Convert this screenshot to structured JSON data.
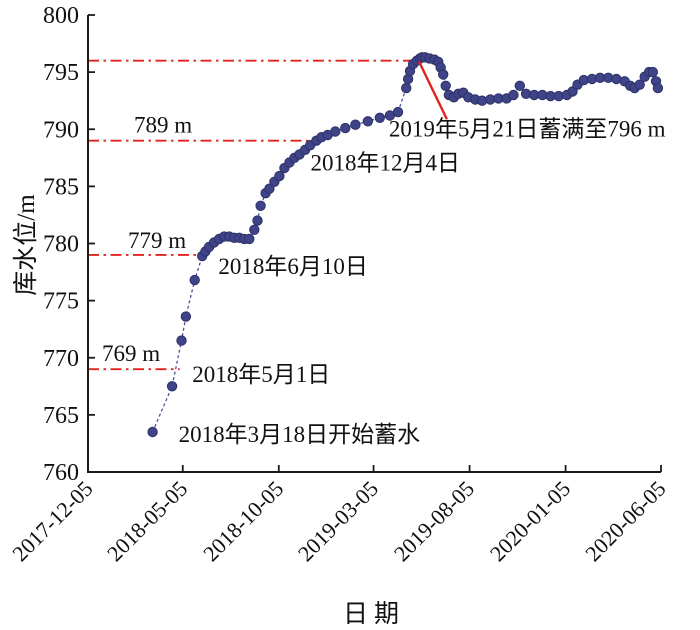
{
  "chart_data": {
    "type": "line",
    "title": "",
    "xlabel": "日期",
    "ylabel": "库水位/m",
    "grid": false,
    "legend": "none",
    "ylim": [
      760,
      800
    ],
    "xlim": [
      "2017-12-05",
      "2020-06-05"
    ],
    "y_ticks": [
      760,
      765,
      770,
      775,
      780,
      785,
      790,
      795,
      800
    ],
    "x_tick_labels": [
      "2017-12-05",
      "2018-05-05",
      "2018-10-05",
      "2019-03-05",
      "2019-08-05",
      "2020-01-05",
      "2020-06-05"
    ],
    "series": [
      {
        "name": "库水位",
        "marker": "circle",
        "marker_color": "#3e4487",
        "marker_edge_color": "#2e3268",
        "line_color": "#4c52a0",
        "line_style": "dashed",
        "points": [
          [
            "2018-03-18",
            763.5
          ],
          [
            "2018-04-18",
            767.5
          ],
          [
            "2018-05-03",
            771.5
          ],
          [
            "2018-05-10",
            773.6
          ],
          [
            "2018-05-24",
            776.8
          ],
          [
            "2018-06-05",
            778.9
          ],
          [
            "2018-06-10",
            779.3
          ],
          [
            "2018-06-16",
            779.7
          ],
          [
            "2018-06-24",
            780.1
          ],
          [
            "2018-07-02",
            780.4
          ],
          [
            "2018-07-10",
            780.6
          ],
          [
            "2018-07-18",
            780.6
          ],
          [
            "2018-07-26",
            780.5
          ],
          [
            "2018-08-03",
            780.5
          ],
          [
            "2018-08-11",
            780.4
          ],
          [
            "2018-08-19",
            780.4
          ],
          [
            "2018-08-27",
            781.2
          ],
          [
            "2018-09-01",
            782.0
          ],
          [
            "2018-09-06",
            783.3
          ],
          [
            "2018-09-14",
            784.4
          ],
          [
            "2018-09-20",
            784.8
          ],
          [
            "2018-09-28",
            785.4
          ],
          [
            "2018-10-06",
            785.9
          ],
          [
            "2018-10-14",
            786.6
          ],
          [
            "2018-10-22",
            787.1
          ],
          [
            "2018-10-30",
            787.5
          ],
          [
            "2018-11-07",
            787.8
          ],
          [
            "2018-11-16",
            788.2
          ],
          [
            "2018-11-24",
            788.6
          ],
          [
            "2018-12-04",
            789.0
          ],
          [
            "2018-12-12",
            789.3
          ],
          [
            "2018-12-22",
            789.5
          ],
          [
            "2019-01-03",
            789.8
          ],
          [
            "2019-01-19",
            790.1
          ],
          [
            "2019-02-04",
            790.4
          ],
          [
            "2019-02-24",
            790.7
          ],
          [
            "2019-03-15",
            791.0
          ],
          [
            "2019-03-31",
            791.2
          ],
          [
            "2019-04-13",
            791.5
          ],
          [
            "2019-04-26",
            793.6
          ],
          [
            "2019-04-29",
            794.4
          ],
          [
            "2019-05-02",
            795.1
          ],
          [
            "2019-05-07",
            795.7
          ],
          [
            "2019-05-13",
            796.0
          ],
          [
            "2019-05-18",
            796.2
          ],
          [
            "2019-05-21",
            796.3
          ],
          [
            "2019-05-26",
            796.3
          ],
          [
            "2019-06-02",
            796.2
          ],
          [
            "2019-06-10",
            796.1
          ],
          [
            "2019-06-16",
            795.9
          ],
          [
            "2019-06-20",
            795.4
          ],
          [
            "2019-06-24",
            794.8
          ],
          [
            "2019-06-28",
            793.8
          ],
          [
            "2019-07-03",
            793.0
          ],
          [
            "2019-07-11",
            792.8
          ],
          [
            "2019-07-18",
            793.1
          ],
          [
            "2019-07-26",
            793.2
          ],
          [
            "2019-08-03",
            792.8
          ],
          [
            "2019-08-14",
            792.6
          ],
          [
            "2019-08-25",
            792.5
          ],
          [
            "2019-09-07",
            792.6
          ],
          [
            "2019-09-20",
            792.7
          ],
          [
            "2019-10-03",
            792.7
          ],
          [
            "2019-10-14",
            793.0
          ],
          [
            "2019-10-24",
            793.8
          ],
          [
            "2019-11-03",
            793.1
          ],
          [
            "2019-11-16",
            793.0
          ],
          [
            "2019-11-29",
            793.0
          ],
          [
            "2019-12-12",
            792.9
          ],
          [
            "2019-12-25",
            792.9
          ],
          [
            "2020-01-07",
            793.0
          ],
          [
            "2020-01-16",
            793.3
          ],
          [
            "2020-01-24",
            793.9
          ],
          [
            "2020-02-03",
            794.3
          ],
          [
            "2020-02-16",
            794.4
          ],
          [
            "2020-02-29",
            794.5
          ],
          [
            "2020-03-13",
            794.5
          ],
          [
            "2020-03-26",
            794.4
          ],
          [
            "2020-04-08",
            794.2
          ],
          [
            "2020-04-17",
            793.8
          ],
          [
            "2020-04-24",
            793.6
          ],
          [
            "2020-05-02",
            793.9
          ],
          [
            "2020-05-10",
            794.6
          ],
          [
            "2020-05-17",
            795.0
          ],
          [
            "2020-05-23",
            795.0
          ],
          [
            "2020-05-28",
            794.2
          ],
          [
            "2020-05-31",
            793.6
          ]
        ]
      }
    ],
    "ref_lines": [
      {
        "id": "769",
        "level": 769,
        "label": "769 m",
        "color": "#e2231d",
        "style": "dash-dot",
        "from_date": "2017-12-05",
        "to_date": "2018-04-30"
      },
      {
        "id": "779",
        "level": 779,
        "label": "779 m",
        "color": "#e2231d",
        "style": "dash-dot",
        "from_date": "2017-12-05",
        "to_date": "2018-06-07"
      },
      {
        "id": "789",
        "level": 789,
        "label": "789 m",
        "color": "#e2231d",
        "style": "dash-dot",
        "from_date": "2017-12-05",
        "to_date": "2018-11-26"
      },
      {
        "id": "796",
        "level": 796,
        "label": "",
        "color": "#e2231d",
        "style": "dash-dot",
        "from_date": "2017-12-05",
        "to_date": "2019-05-12"
      }
    ],
    "annotations": [
      {
        "id": "start",
        "text": "2018年3月18日开始蓄水",
        "date": "2018-03-18",
        "level": 763.5,
        "leader": false
      },
      {
        "id": "may1",
        "text": "2018年5月1日",
        "date": "2018-05-01",
        "level": 769.0,
        "leader": false
      },
      {
        "id": "jun10",
        "text": "2018年6月10日",
        "date": "2018-06-10",
        "level": 779.0,
        "leader": false
      },
      {
        "id": "dec4",
        "text": "2018年12月4日",
        "date": "2018-12-04",
        "level": 789.0,
        "leader": false
      },
      {
        "id": "full",
        "text": "2019年5月21日蓄满至796 m",
        "date": "2019-05-21",
        "level": 796.3,
        "leader": true,
        "leader_color": "#e2231d"
      }
    ],
    "colors": {
      "marker": "#3e4487",
      "reference_red": "#e2231d",
      "axis": "#1a1a1a",
      "text": "#111111"
    }
  }
}
